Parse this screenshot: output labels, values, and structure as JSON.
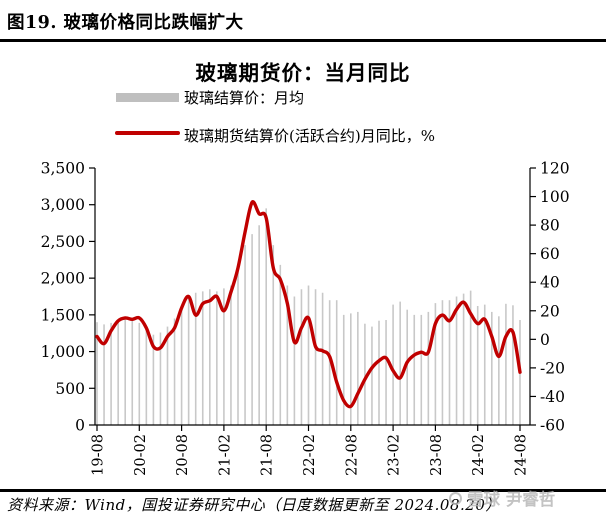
{
  "header": {
    "title": "图19. 玻璃价格同比跌幅扩大"
  },
  "chart": {
    "title": "玻璃期货价：当月同比",
    "legend": [
      {
        "label": "玻璃结算价：月均",
        "swatch_color": "#BFBFBF",
        "type": "bar"
      },
      {
        "label": "玻璃期货结算价(活跃合约)月同比，%",
        "swatch_color": "#C00000",
        "type": "line"
      }
    ]
  },
  "chart_data": {
    "type": "combo",
    "title": "玻璃期货价：当月同比",
    "grid": false,
    "legend_position": "top",
    "categories": [
      "19-08",
      "19-09",
      "19-10",
      "19-11",
      "19-12",
      "20-01",
      "20-02",
      "20-03",
      "20-04",
      "20-05",
      "20-06",
      "20-07",
      "20-08",
      "20-09",
      "20-10",
      "20-11",
      "20-12",
      "21-01",
      "21-02",
      "21-03",
      "21-04",
      "21-05",
      "21-06",
      "21-07",
      "21-08",
      "21-09",
      "21-10",
      "21-11",
      "21-12",
      "22-01",
      "22-02",
      "22-03",
      "22-04",
      "22-05",
      "22-06",
      "22-07",
      "22-08",
      "22-09",
      "22-10",
      "22-11",
      "22-12",
      "23-01",
      "23-02",
      "23-03",
      "23-04",
      "23-05",
      "23-06",
      "23-07",
      "23-08",
      "23-09",
      "23-10",
      "23-11",
      "23-12",
      "24-01",
      "24-02",
      "24-03",
      "24-04",
      "24-05",
      "24-06",
      "24-07",
      "24-08"
    ],
    "x_tick_labels": [
      "19-08",
      "20-02",
      "20-08",
      "21-02",
      "21-08",
      "22-02",
      "22-08",
      "23-02",
      "23-08",
      "24-02",
      "24-08"
    ],
    "left_axis": {
      "min": 0,
      "max": 3500,
      "step": 500,
      "ticks": [
        "0",
        "500",
        "1,000",
        "1,500",
        "2,000",
        "2,500",
        "3,000",
        "3,500"
      ]
    },
    "right_axis": {
      "min": -60,
      "max": 120,
      "step": 20,
      "ticks": [
        "-60",
        "-40",
        "-20",
        "0",
        "20",
        "40",
        "60",
        "80",
        "100",
        "120"
      ]
    },
    "series": [
      {
        "name": "玻璃结算价：月均",
        "type": "bar",
        "axis": "left",
        "color": "#C8C8C8",
        "values": [
          1400,
          1370,
          1390,
          1420,
          1450,
          1440,
          1390,
          1310,
          1230,
          1260,
          1340,
          1450,
          1590,
          1750,
          1800,
          1820,
          1850,
          1820,
          1860,
          1900,
          2100,
          2450,
          2600,
          2720,
          2950,
          2450,
          2180,
          1900,
          1750,
          1850,
          1900,
          1850,
          1800,
          1700,
          1700,
          1500,
          1520,
          1540,
          1380,
          1340,
          1420,
          1430,
          1640,
          1680,
          1570,
          1500,
          1500,
          1540,
          1660,
          1700,
          1700,
          1750,
          1790,
          1830,
          1620,
          1640,
          1540,
          1480,
          1650,
          1630,
          1430
        ]
      },
      {
        "name": "玻璃期货结算价(活跃合约)月同比，%",
        "type": "line",
        "axis": "right",
        "color": "#C00000",
        "values": [
          2,
          -3,
          6,
          13,
          15,
          14,
          15,
          8,
          -5,
          -6,
          2,
          8,
          22,
          30,
          17,
          25,
          27,
          30,
          20,
          33,
          50,
          75,
          96,
          88,
          85,
          50,
          42,
          25,
          -2,
          8,
          15,
          -5,
          -8,
          -12,
          -30,
          -43,
          -47,
          -38,
          -28,
          -20,
          -15,
          -13,
          -22,
          -27,
          -16,
          -11,
          -9,
          -9,
          11,
          17,
          13,
          21,
          26,
          18,
          11,
          14,
          2,
          -12,
          2,
          5,
          -23
        ]
      }
    ]
  },
  "footer": {
    "source": "资料来源：Wind，国投证券研究中心（日度数据更新至 2024.08.20）"
  },
  "watermark": {
    "icon": "snowball-logo",
    "text": "雪球 尹睿哲"
  }
}
